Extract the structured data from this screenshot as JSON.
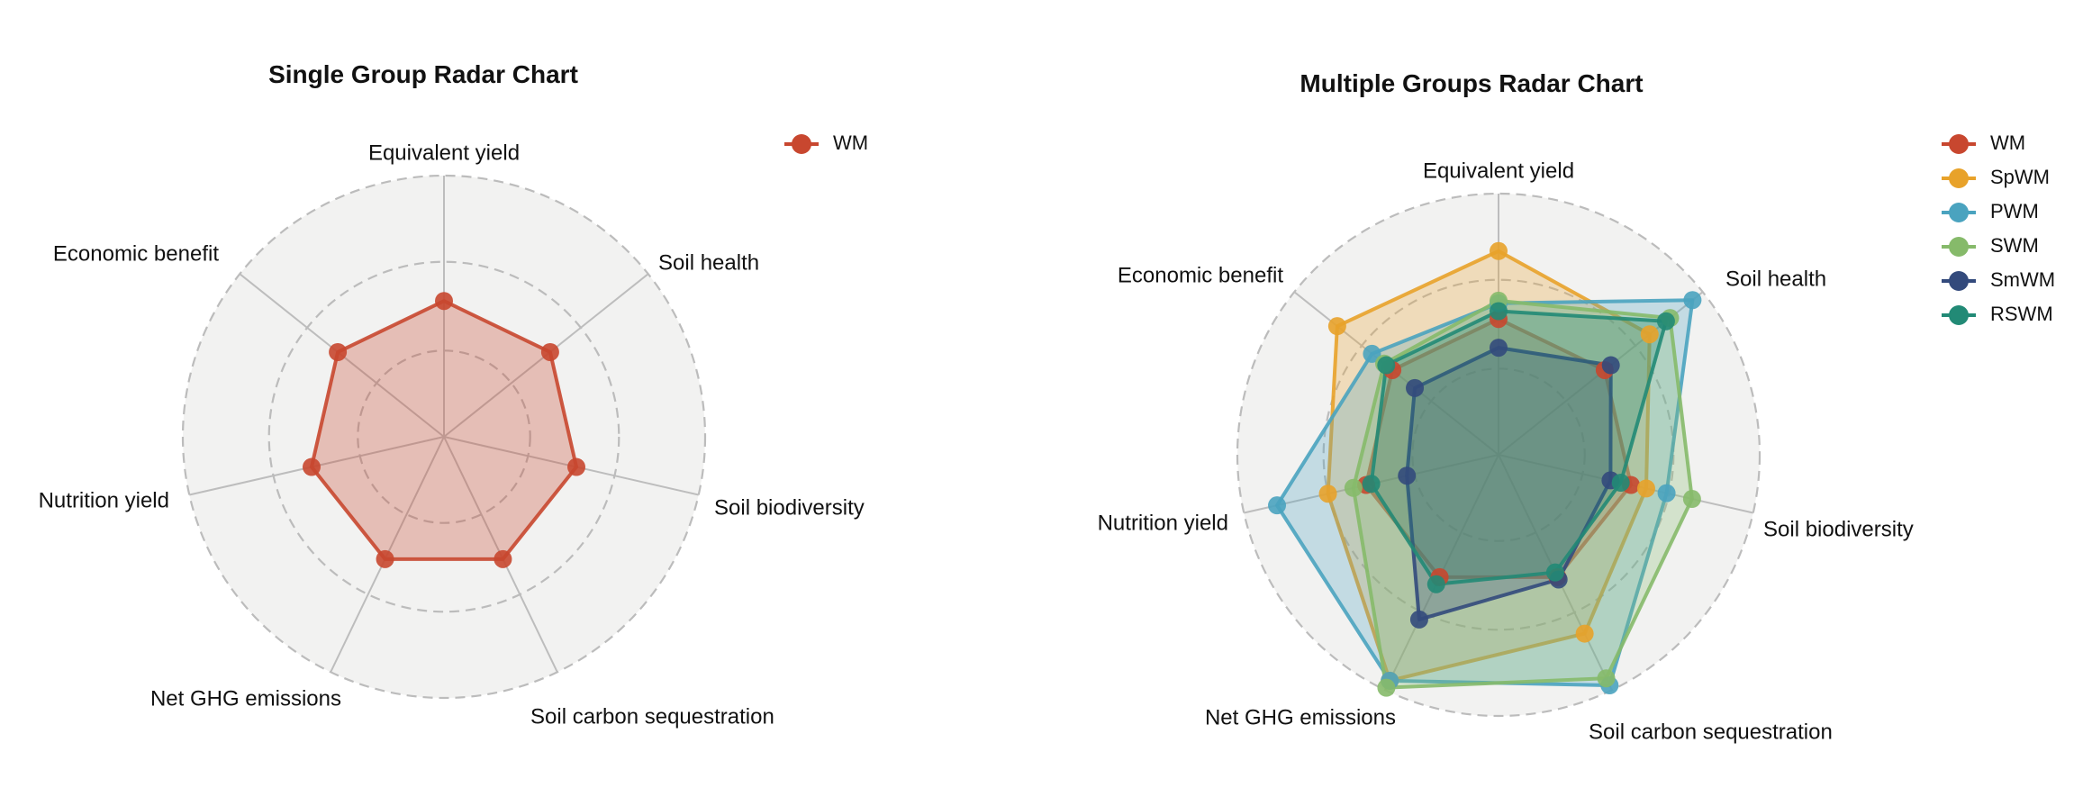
{
  "chart_data": [
    {
      "type": "radar",
      "title": "Single Group Radar Chart",
      "axes": [
        "Equivalent yield",
        "Soil health",
        "Soil biodiversity",
        "Soil carbon sequestration",
        "Net GHG emissions",
        "Nutrition yield",
        "Economic benefit"
      ],
      "rlim": [
        0,
        1
      ],
      "grid_levels": [
        0.33,
        0.67,
        1.0
      ],
      "grid": "dashed circles",
      "legend_position": "top-right",
      "series": [
        {
          "name": "WM",
          "color": "#c8472f",
          "values": [
            0.52,
            0.52,
            0.52,
            0.52,
            0.52,
            0.52,
            0.52
          ]
        }
      ]
    },
    {
      "type": "radar",
      "title": "Multiple Groups Radar Chart",
      "axes": [
        "Equivalent yield",
        "Soil health",
        "Soil biodiversity",
        "Soil carbon sequestration",
        "Net GHG emissions",
        "Nutrition yield",
        "Economic benefit"
      ],
      "rlim": [
        0,
        1
      ],
      "grid_levels": [
        0.33,
        0.67,
        1.0
      ],
      "grid": "dashed circles",
      "legend_position": "top-right",
      "series": [
        {
          "name": "WM",
          "color": "#c8472f",
          "values": [
            0.52,
            0.52,
            0.52,
            0.52,
            0.52,
            0.52,
            0.52
          ]
        },
        {
          "name": "SpWM",
          "color": "#e8a22a",
          "values": [
            0.78,
            0.74,
            0.58,
            0.76,
            0.96,
            0.67,
            0.79
          ]
        },
        {
          "name": "PWM",
          "color": "#4aa3bf",
          "values": [
            0.58,
            0.95,
            0.66,
            0.98,
            0.96,
            0.87,
            0.62
          ]
        },
        {
          "name": "SWM",
          "color": "#86ba6a",
          "values": [
            0.59,
            0.84,
            0.76,
            0.95,
            0.99,
            0.57,
            0.56
          ]
        },
        {
          "name": "SmWM",
          "color": "#334a7c",
          "values": [
            0.41,
            0.55,
            0.44,
            0.53,
            0.7,
            0.36,
            0.41
          ]
        },
        {
          "name": "RSWM",
          "color": "#228a76",
          "values": [
            0.55,
            0.82,
            0.48,
            0.5,
            0.55,
            0.5,
            0.55
          ]
        }
      ]
    }
  ]
}
